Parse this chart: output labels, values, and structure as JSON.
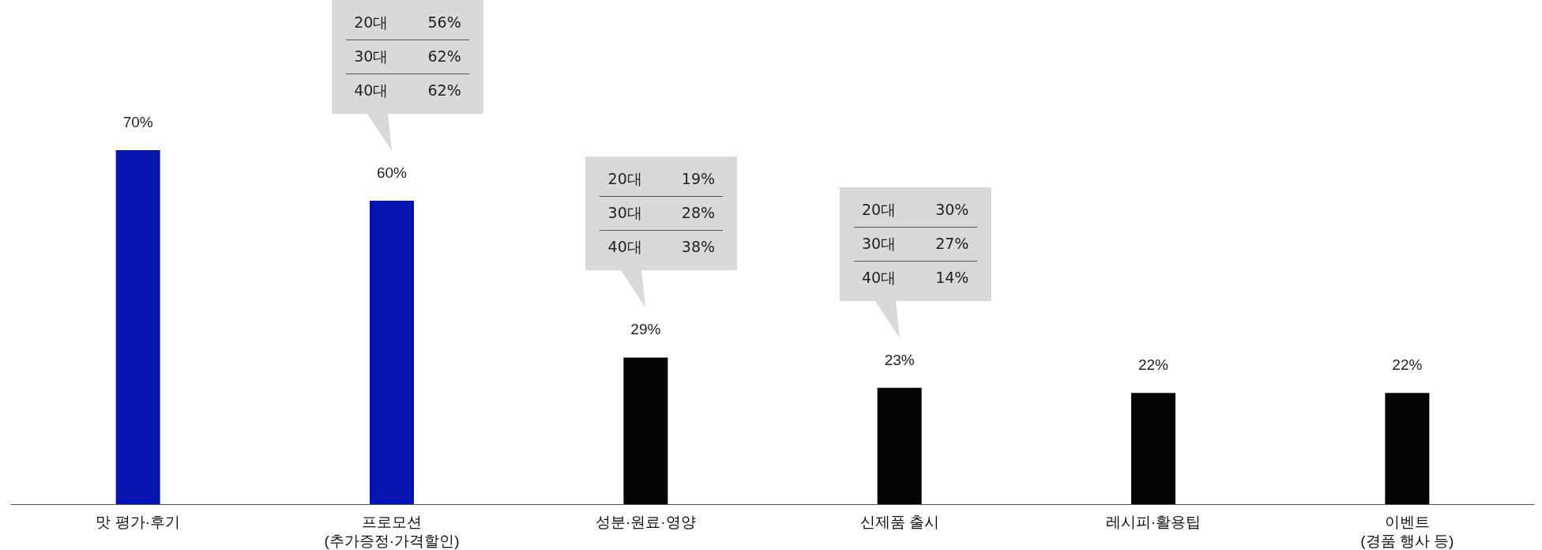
{
  "chart_data": {
    "type": "bar",
    "categories": [
      "맛 평가·후기",
      "프로모션\n(추가증정·가격할인)",
      "성분·원료·영양",
      "신제품 출시",
      "레시피·활용팁",
      "이벤트\n(경품 행사 등)"
    ],
    "values": [
      70,
      60,
      29,
      23,
      22,
      22
    ],
    "value_labels": [
      "70%",
      "60%",
      "29%",
      "23%",
      "22%",
      "22%"
    ],
    "colors": [
      "#0515ad",
      "#0515ad",
      "#050505",
      "#050505",
      "#050505",
      "#050505"
    ],
    "annotations": [
      "20대 56%",
      "30대 62%",
      "40대 62%",
      "20대 19%",
      "30대 28%",
      "40대 38%",
      "20대 30%",
      "30대 27%",
      "40대 14%"
    ]
  }
}
